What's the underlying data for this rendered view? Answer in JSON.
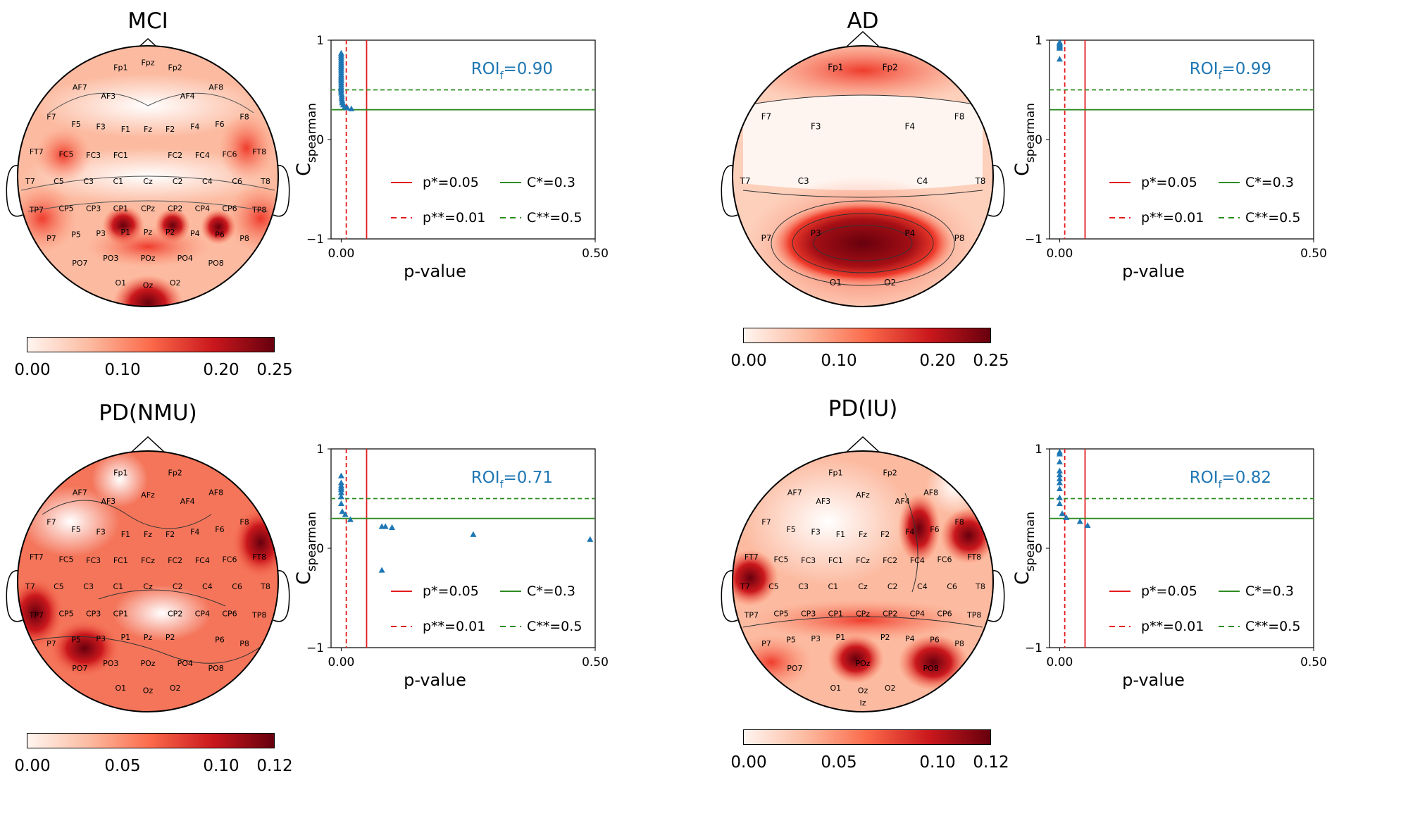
{
  "panels": [
    {
      "id": "mci",
      "title": "MCI",
      "electrodes": [
        "Fp1",
        "Fpz",
        "Fp2",
        "AF7",
        "AF3",
        "AF4",
        "AF8",
        "F7",
        "F5",
        "F3",
        "F1",
        "Fz",
        "F2",
        "F4",
        "F6",
        "F8",
        "FT7",
        "FC5",
        "FC3",
        "FC1",
        "FC2",
        "FC4",
        "FC6",
        "FT8",
        "T7",
        "C5",
        "C3",
        "C1",
        "Cz",
        "C2",
        "C4",
        "C6",
        "T8",
        "TP7",
        "CP5",
        "CP3",
        "CP1",
        "CPz",
        "CP2",
        "CP4",
        "CP6",
        "TP8",
        "P7",
        "P5",
        "P3",
        "P1",
        "Pz",
        "P2",
        "P4",
        "P6",
        "P8",
        "PO7",
        "PO3",
        "POz",
        "PO4",
        "PO8",
        "O1",
        "Oz",
        "O2"
      ],
      "colorbar": {
        "ticks": [
          "0.00",
          "0.10",
          "0.20",
          "0.25"
        ],
        "range": [
          0,
          0.25
        ]
      },
      "roi_label": "ROI",
      "roi_sub": "f",
      "roi_value": "=0.90"
    },
    {
      "id": "ad",
      "title": "AD",
      "electrodes": [
        "Fp1",
        "Fp2",
        "F7",
        "F3",
        "F4",
        "F8",
        "T7",
        "C3",
        "C4",
        "T8",
        "P7",
        "P3",
        "P4",
        "P8",
        "O1",
        "O2"
      ],
      "colorbar": {
        "ticks": [
          "0.00",
          "0.10",
          "0.20",
          "0.25"
        ],
        "range": [
          0,
          0.25
        ]
      },
      "roi_label": "ROI",
      "roi_sub": "f",
      "roi_value": "=0.99"
    },
    {
      "id": "pdnmu",
      "title": "PD(NMU)",
      "electrodes": [
        "Fp1",
        "Fp2",
        "AF7",
        "AF3",
        "AFz",
        "AF4",
        "AF8",
        "F7",
        "F5",
        "F3",
        "F1",
        "Fz",
        "F2",
        "F4",
        "F6",
        "F8",
        "FT7",
        "FC5",
        "FC3",
        "FC1",
        "FCz",
        "FC2",
        "FC4",
        "FC6",
        "FT8",
        "T7",
        "C5",
        "C3",
        "C1",
        "Cz",
        "C2",
        "C4",
        "C6",
        "T8",
        "TP7",
        "CP5",
        "CP3",
        "CP1",
        "CP2",
        "CP4",
        "CP6",
        "TP8",
        "P7",
        "P5",
        "P3",
        "P1",
        "Pz",
        "P2",
        "P6",
        "P8",
        "PO7",
        "PO3",
        "POz",
        "PO4",
        "PO8",
        "O1",
        "Oz",
        "O2"
      ],
      "colorbar": {
        "ticks": [
          "0.00",
          "0.05",
          "0.10",
          "0.12"
        ],
        "range": [
          0,
          0.12
        ]
      },
      "roi_label": "ROI",
      "roi_sub": "f",
      "roi_value": "=0.71"
    },
    {
      "id": "pdiu",
      "title": "PD(IU)",
      "electrodes": [
        "Fp1",
        "Fp2",
        "AF7",
        "AF3",
        "AFz",
        "AF4",
        "AF8",
        "F7",
        "F5",
        "F3",
        "F1",
        "Fz",
        "F2",
        "F4",
        "F6",
        "F8",
        "FT7",
        "FC5",
        "FC3",
        "FC1",
        "FCz",
        "FC2",
        "FC4",
        "FC6",
        "FT8",
        "T7",
        "C5",
        "C3",
        "C1",
        "Cz",
        "C2",
        "C4",
        "C6",
        "T8",
        "TP7",
        "CP5",
        "CP3",
        "CP1",
        "CPz",
        "CP2",
        "CP4",
        "CP6",
        "TP8",
        "P7",
        "P5",
        "P3",
        "P1",
        "P2",
        "P4",
        "P6",
        "P8",
        "PO7",
        "POz",
        "PO8",
        "O1",
        "Oz",
        "O2",
        "Iz"
      ],
      "colorbar": {
        "ticks": [
          "0.00",
          "0.05",
          "0.10",
          "0.12"
        ],
        "range": [
          0,
          0.12
        ]
      },
      "roi_label": "ROI",
      "roi_sub": "f",
      "roi_value": "=0.82"
    }
  ],
  "shared_axis": {
    "ylabel_main": "C",
    "ylabel_sub": "spearman",
    "xlabel": "p-value",
    "xticks": [
      "0.00",
      "0.50"
    ],
    "yticks": [
      "1",
      "0",
      "−1"
    ]
  },
  "legend": {
    "p_star": "p*=0.05",
    "p_dstar": "p**=0.01",
    "c_star": "C*=0.3",
    "c_dstar": "C**=0.5"
  },
  "colors": {
    "marker": "#1f77b4",
    "p_lines": "#e31a1c",
    "c_lines": "#2e8b22",
    "roi_text": "#1f77b4"
  },
  "chart_data": [
    {
      "type": "scatter",
      "panel": "MCI",
      "xlabel": "p-value",
      "ylabel": "Cspearman",
      "xlim": [
        -0.02,
        0.5
      ],
      "ylim": [
        -1,
        1
      ],
      "thresholds": {
        "p_star": 0.05,
        "p_dstar": 0.01,
        "c_star": 0.3,
        "c_dstar": 0.5
      },
      "points": [
        [
          0.0,
          0.87
        ],
        [
          0.0,
          0.85
        ],
        [
          0.0,
          0.83
        ],
        [
          0.0,
          0.81
        ],
        [
          0.0,
          0.79
        ],
        [
          0.0,
          0.77
        ],
        [
          0.0,
          0.75
        ],
        [
          0.0,
          0.73
        ],
        [
          0.0,
          0.71
        ],
        [
          0.0,
          0.69
        ],
        [
          0.0,
          0.67
        ],
        [
          0.0,
          0.65
        ],
        [
          0.0,
          0.63
        ],
        [
          0.0,
          0.61
        ],
        [
          0.0,
          0.59
        ],
        [
          0.0,
          0.57
        ],
        [
          0.0,
          0.55
        ],
        [
          0.0,
          0.53
        ],
        [
          0.0,
          0.51
        ],
        [
          0.0,
          0.49
        ],
        [
          0.0,
          0.47
        ],
        [
          0.001,
          0.45
        ],
        [
          0.001,
          0.43
        ],
        [
          0.001,
          0.41
        ],
        [
          0.002,
          0.39
        ],
        [
          0.002,
          0.37
        ],
        [
          0.004,
          0.35
        ],
        [
          0.007,
          0.33
        ],
        [
          0.012,
          0.32
        ],
        [
          0.02,
          0.31
        ]
      ]
    },
    {
      "type": "scatter",
      "panel": "AD",
      "xlabel": "p-value",
      "ylabel": "Cspearman",
      "xlim": [
        -0.02,
        0.5
      ],
      "ylim": [
        -1,
        1
      ],
      "thresholds": {
        "p_star": 0.05,
        "p_dstar": 0.01,
        "c_star": 0.3,
        "c_dstar": 0.5
      },
      "points": [
        [
          0.0,
          0.98
        ],
        [
          0.0,
          0.97
        ],
        [
          0.0,
          0.96
        ],
        [
          0.0,
          0.95
        ],
        [
          0.0,
          0.94
        ],
        [
          0.0,
          0.93
        ],
        [
          0.0,
          0.92
        ],
        [
          0.0,
          0.81
        ]
      ]
    },
    {
      "type": "scatter",
      "panel": "PD(NMU)",
      "xlabel": "p-value",
      "ylabel": "Cspearman",
      "xlim": [
        -0.02,
        0.5
      ],
      "ylim": [
        -1,
        1
      ],
      "thresholds": {
        "p_star": 0.05,
        "p_dstar": 0.01,
        "c_star": 0.3,
        "c_dstar": 0.5
      },
      "points": [
        [
          0.0,
          0.73
        ],
        [
          0.0,
          0.66
        ],
        [
          0.0,
          0.63
        ],
        [
          0.0,
          0.61
        ],
        [
          0.0,
          0.59
        ],
        [
          0.0,
          0.56
        ],
        [
          0.0,
          0.52
        ],
        [
          0.0,
          0.45
        ],
        [
          0.002,
          0.37
        ],
        [
          0.008,
          0.34
        ],
        [
          0.018,
          0.29
        ],
        [
          0.08,
          0.22
        ],
        [
          0.087,
          0.22
        ],
        [
          0.1,
          0.21
        ],
        [
          0.26,
          0.14
        ],
        [
          0.49,
          0.09
        ],
        [
          0.08,
          -0.22
        ]
      ]
    },
    {
      "type": "scatter",
      "panel": "PD(IU)",
      "xlabel": "p-value",
      "ylabel": "Cspearman",
      "xlim": [
        -0.02,
        0.5
      ],
      "ylim": [
        -1,
        1
      ],
      "thresholds": {
        "p_star": 0.05,
        "p_dstar": 0.01,
        "c_star": 0.3,
        "c_dstar": 0.5
      },
      "points": [
        [
          0.0,
          0.97
        ],
        [
          0.0,
          0.95
        ],
        [
          0.0,
          0.87
        ],
        [
          0.0,
          0.78
        ],
        [
          0.0,
          0.74
        ],
        [
          0.0,
          0.7
        ],
        [
          0.0,
          0.66
        ],
        [
          0.0,
          0.6
        ],
        [
          0.0,
          0.51
        ],
        [
          0.0,
          0.45
        ],
        [
          0.005,
          0.35
        ],
        [
          0.013,
          0.31
        ],
        [
          0.04,
          0.27
        ],
        [
          0.055,
          0.23
        ]
      ]
    }
  ]
}
